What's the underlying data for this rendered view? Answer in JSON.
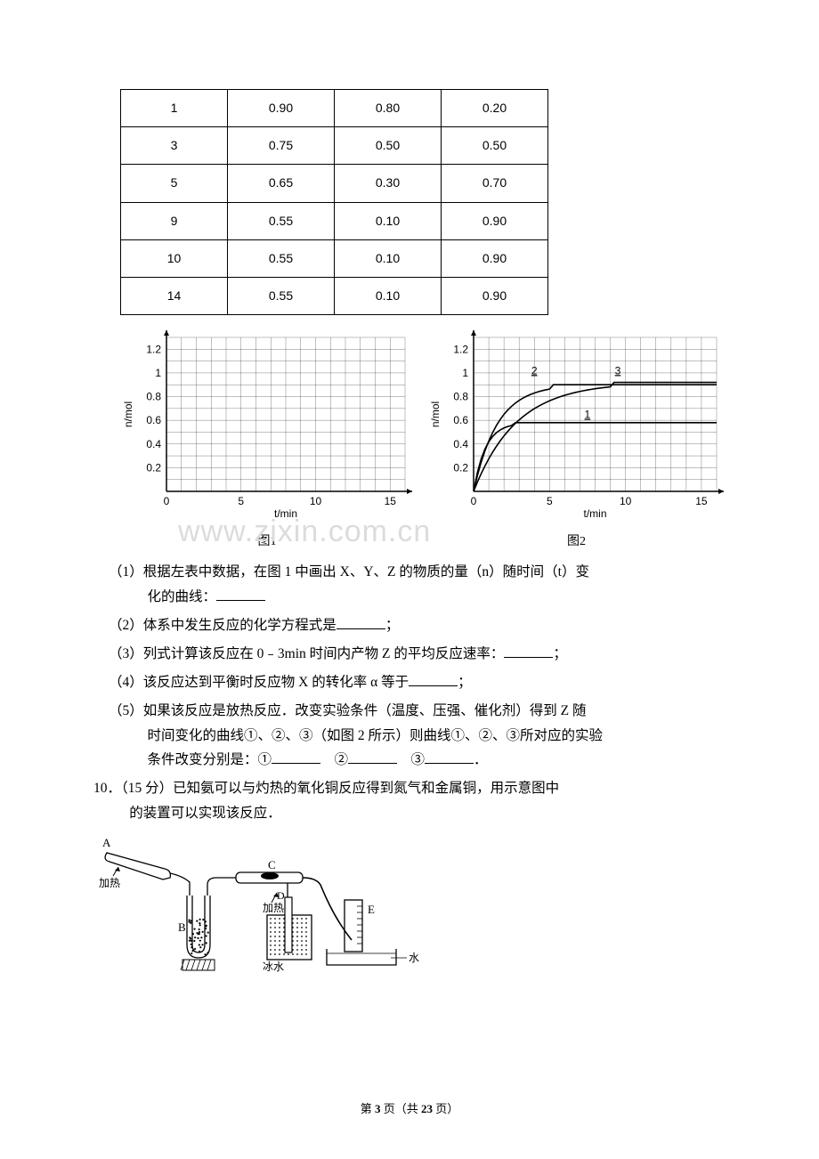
{
  "table": {
    "columns_count": 4,
    "border_color": "#000000",
    "cell_font": "Arial",
    "cell_fontsize": 14,
    "rows": [
      [
        "1",
        "0.90",
        "0.80",
        "0.20"
      ],
      [
        "3",
        "0.75",
        "0.50",
        "0.50"
      ],
      [
        "5",
        "0.65",
        "0.30",
        "0.70"
      ],
      [
        "9",
        "0.55",
        "0.10",
        "0.90"
      ],
      [
        "10",
        "0.55",
        "0.10",
        "0.90"
      ],
      [
        "14",
        "0.55",
        "0.10",
        "0.90"
      ]
    ]
  },
  "chart1": {
    "type": "scatter_grid_blank",
    "caption": "图1",
    "ylabel": "n/mol",
    "xlabel": "t/min",
    "x_ticks": [
      0,
      5,
      10,
      15
    ],
    "y_ticks": [
      0.2,
      0.4,
      0.6,
      0.8,
      1,
      1.2
    ],
    "xlim": [
      0,
      16
    ],
    "ylim": [
      0,
      1.3
    ],
    "grid_color": "#000000",
    "grid_weight": 0.5,
    "axis_color": "#000000",
    "tick_fontsize": 12,
    "label_fontsize": 12,
    "minor_grid_step_x": 1,
    "minor_grid_step_y": 0.1
  },
  "chart2": {
    "type": "line",
    "caption": "图2",
    "ylabel": "n/mol",
    "xlabel": "t/min",
    "x_ticks": [
      0,
      5,
      10,
      15
    ],
    "y_ticks": [
      0.2,
      0.4,
      0.6,
      0.8,
      1,
      1.2
    ],
    "xlim": [
      0,
      16
    ],
    "ylim": [
      0,
      1.3
    ],
    "grid_color": "#000000",
    "grid_weight": 0.5,
    "axis_color": "#000000",
    "tick_fontsize": 12,
    "label_fontsize": 12,
    "minor_grid_step_x": 1,
    "minor_grid_step_y": 0.1,
    "curves": [
      {
        "label": "1",
        "label_x": 7.3,
        "label_y": 0.62,
        "plateau": 0.58,
        "rise_end_x": 2.5,
        "color": "#000000",
        "line_width": 1.6
      },
      {
        "label": "2",
        "label_x": 3.8,
        "label_y": 0.99,
        "plateau": 0.9,
        "rise_end_x": 5.0,
        "color": "#000000",
        "line_width": 1.6
      },
      {
        "label": "3",
        "label_x": 9.3,
        "label_y": 0.99,
        "plateau": 0.92,
        "rise_end_x": 9.0,
        "color": "#000000",
        "line_width": 1.6
      }
    ]
  },
  "watermark": "www.zixin.com.cn",
  "questions": {
    "q1_a": "（1）根据左表中数据，在图 1 中画出 X、Y、Z 的物质的量（n）随时间（t）变",
    "q1_b": "化的曲线：",
    "q2": "（2）体系中发生反应的化学方程式是",
    "q2_tail": "；",
    "q3": "（3）列式计算该反应在 0﹣3min 时间内产物 Z 的平均反应速率：",
    "q3_tail": "；",
    "q4": "（4）该反应达到平衡时反应物 X 的转化率 α 等于",
    "q4_tail": "；",
    "q5_a": "（5）如果该反应是放热反应．改变实验条件（温度、压强、催化剂）得到 Z 随",
    "q5_b": "时间变化的曲线①、②、③（如图 2 所示）则曲线①、②、③所对应的实验",
    "q5_c_pre": "条件改变分别是：①",
    "q5_c_mid1": "　②",
    "q5_c_mid2": "　③",
    "q5_c_tail": "．"
  },
  "q10": {
    "line1": "10．（15 分）已知氨可以与灼热的氧化铜反应得到氮气和金属铜，用示意图中",
    "line2": "的装置可以实现该反应．"
  },
  "diagram": {
    "labels": {
      "A": "A",
      "heat_left": "加热",
      "B": "B",
      "C": "C",
      "D": "D",
      "heat_mid": "加热",
      "icewater": "冰水",
      "E": "E",
      "water": "水"
    },
    "line_color": "#000000",
    "hatch_color": "#000000"
  },
  "footer": {
    "pre": "第 ",
    "page": "3",
    "mid": " 页（共 ",
    "total": "23",
    "post": " 页）"
  }
}
